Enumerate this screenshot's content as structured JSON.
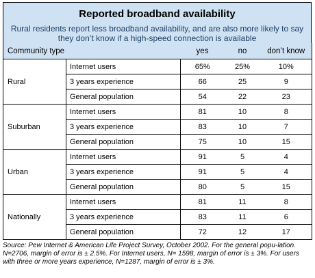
{
  "title": "Reported broadband availability",
  "subtitle": "Rural residents report less broadband availability, and are also more likely to say they don’t know if a high-speed connection is available",
  "columns": {
    "community": "Community type",
    "yes": "yes",
    "no": "no",
    "dontknow": "don’t know"
  },
  "groups": [
    {
      "name": "Rural",
      "rows": [
        {
          "label": "Internet users",
          "yes": "65%",
          "no": "25%",
          "dk": "10%"
        },
        {
          "label": "3 years experience",
          "yes": "66",
          "no": "25",
          "dk": "9"
        },
        {
          "label": "General population",
          "yes": "54",
          "no": "22",
          "dk": "23"
        }
      ]
    },
    {
      "name": "Suburban",
      "rows": [
        {
          "label": "Internet users",
          "yes": "81",
          "no": "10",
          "dk": "8"
        },
        {
          "label": "3 years experience",
          "yes": "83",
          "no": "10",
          "dk": "7"
        },
        {
          "label": "General population",
          "yes": "75",
          "no": "10",
          "dk": "15"
        }
      ]
    },
    {
      "name": "Urban",
      "rows": [
        {
          "label": "Internet users",
          "yes": "91",
          "no": "5",
          "dk": "4"
        },
        {
          "label": "3 years experience",
          "yes": "91",
          "no": "5",
          "dk": "4"
        },
        {
          "label": "General population",
          "yes": "80",
          "no": "5",
          "dk": "15"
        }
      ]
    },
    {
      "name": "Nationally",
      "rows": [
        {
          "label": "Internet users",
          "yes": "81",
          "no": "11",
          "dk": "8"
        },
        {
          "label": "3 years experience",
          "yes": "83",
          "no": "11",
          "dk": "6"
        },
        {
          "label": "General population",
          "yes": "72",
          "no": "12",
          "dk": "17"
        }
      ]
    }
  ],
  "source": "Source: Pew Internet & American Life Project Survey, October 2002. For the general popu-lation. N=2706, margin of error is ± 2.5%. For Internet users, N= 1598, margin of error is ± 3%. For users with three or more years experience, N=1287, margin of error is ± 3%."
}
